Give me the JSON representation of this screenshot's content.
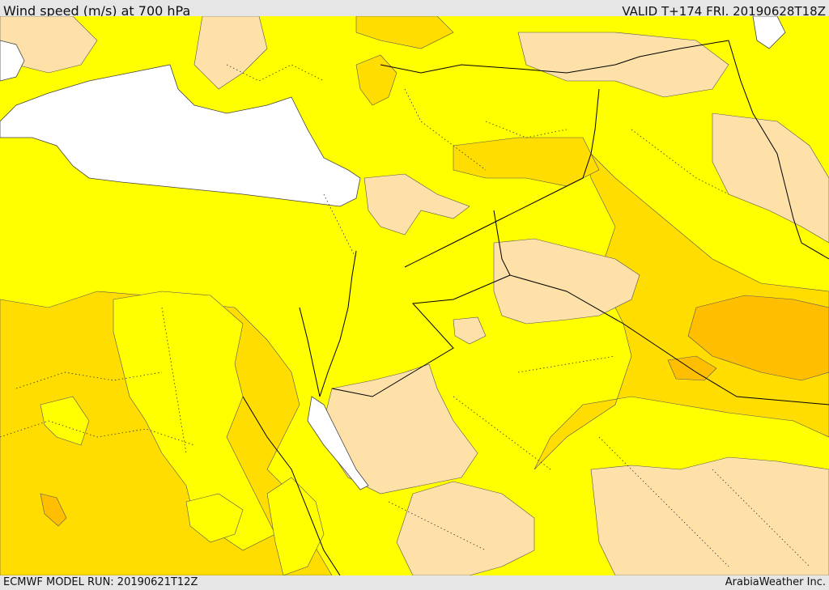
{
  "header": {
    "title": "Wind speed (m/s) at 700 hPa",
    "valid_time": "VALID T+174 FRI. 20190628T18Z"
  },
  "footer": {
    "model_run": "ECMWF MODEL RUN: 20190621T12Z",
    "provider": "ArabiaWeather Inc."
  },
  "map": {
    "variable": "wind speed",
    "units": "m/s",
    "level": "700 hPa",
    "colors": {
      "lightest": "#fde1a8",
      "light": "#ffff00",
      "medium": "#ffdd00",
      "strong": "#ffbf00",
      "sea": "#ffffff"
    }
  }
}
